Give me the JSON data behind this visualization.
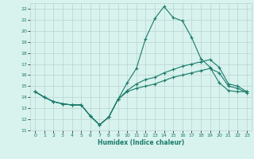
{
  "xlabel": "Humidex (Indice chaleur)",
  "bg_color": "#d8f2ee",
  "grid_color": "#b8d4d0",
  "line_color": "#1a7a6a",
  "xlim": [
    -0.5,
    23.5
  ],
  "ylim": [
    11,
    22.5
  ],
  "xticks": [
    0,
    1,
    2,
    3,
    4,
    5,
    6,
    7,
    8,
    9,
    10,
    11,
    12,
    13,
    14,
    15,
    16,
    17,
    18,
    19,
    20,
    21,
    22,
    23
  ],
  "yticks": [
    11,
    12,
    13,
    14,
    15,
    16,
    17,
    18,
    19,
    20,
    21,
    22
  ],
  "line1_x": [
    0,
    1,
    2,
    3,
    4,
    5,
    6,
    7,
    8,
    9,
    10,
    11,
    12,
    13,
    14,
    15,
    16,
    17,
    18,
    19,
    20,
    21,
    22,
    23
  ],
  "line1_y": [
    14.5,
    14.0,
    13.6,
    13.4,
    13.3,
    13.3,
    12.3,
    11.5,
    12.2,
    13.8,
    15.3,
    16.6,
    19.3,
    21.1,
    22.2,
    21.2,
    20.9,
    19.4,
    17.5,
    16.7,
    15.3,
    14.6,
    14.5,
    14.5
  ],
  "line2_x": [
    0,
    1,
    2,
    3,
    4,
    5,
    6,
    7,
    8,
    9,
    10,
    11,
    12,
    13,
    14,
    15,
    16,
    17,
    18,
    19,
    20,
    21,
    22,
    23
  ],
  "line2_y": [
    14.5,
    14.0,
    13.6,
    13.4,
    13.3,
    13.3,
    12.3,
    11.5,
    12.2,
    13.8,
    14.6,
    15.2,
    15.6,
    15.8,
    16.2,
    16.5,
    16.8,
    17.0,
    17.2,
    17.4,
    16.7,
    15.2,
    15.0,
    14.5
  ],
  "line3_x": [
    0,
    1,
    2,
    3,
    4,
    5,
    6,
    7,
    8,
    9,
    10,
    11,
    12,
    13,
    14,
    15,
    16,
    17,
    18,
    19,
    20,
    21,
    22,
    23
  ],
  "line3_y": [
    14.5,
    14.0,
    13.6,
    13.4,
    13.3,
    13.3,
    12.3,
    11.5,
    12.2,
    13.8,
    14.5,
    14.8,
    15.0,
    15.2,
    15.5,
    15.8,
    16.0,
    16.2,
    16.4,
    16.6,
    16.2,
    15.0,
    14.8,
    14.4
  ]
}
